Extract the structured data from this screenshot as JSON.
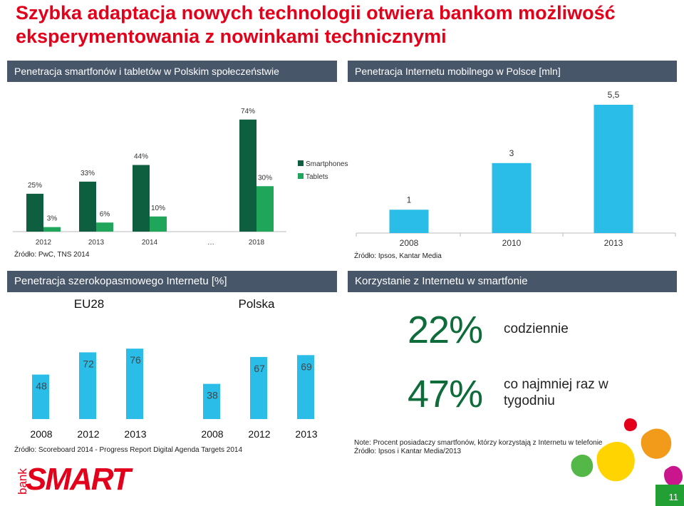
{
  "title": "Szybka adaptacja nowych technologii otwiera bankom możliwość eksperymentowania z nowinkami technicznymi",
  "colors": {
    "red": "#e2001a",
    "dark_green": "#0e5e40",
    "green": "#1fa65a",
    "blue": "#29bde8",
    "header": "#48566a",
    "page_green": "#22a033"
  },
  "panels": {
    "smartphones": {
      "header": "Penetracja smartfonów i tabletów w Polskim społeczeństwie",
      "source": "Źródło: PwC, TNS 2014"
    },
    "mobile_internet": {
      "header": "Penetracja Internetu mobilnego w Polsce [mln]",
      "source": "Źródło: Ipsos, Kantar Media"
    },
    "broadband": {
      "header": "Penetracja szerokopasmowego Internetu [%]",
      "source": "Źródło: Scoreboard 2014 - Progress Report Digital Agenda Targets 2014"
    },
    "usage": {
      "header": "Korzystanie z Internetu w smartfonie",
      "items": [
        {
          "value": "22%",
          "label": "codziennie"
        },
        {
          "value": "47%",
          "label": "co najmniej raz w tygodniu"
        }
      ],
      "note_line1": "Note: Procent posiadaczy smartfonów, którzy korzystają z Internetu w telefonie",
      "note_line2": "Źródło: Ipsos i Kantar Media/2013"
    }
  },
  "logo": {
    "bank": "bank",
    "smart": "SMART"
  },
  "page_number": "11",
  "chart_data": [
    {
      "type": "bar",
      "categories": [
        "2012",
        "2013",
        "2014",
        "…",
        "2018"
      ],
      "series": [
        {
          "name": "Smartphones",
          "values": [
            25,
            33,
            44,
            null,
            74
          ],
          "labels": [
            "25%",
            "33%",
            "44%",
            "",
            "74%"
          ]
        },
        {
          "name": "Tablets",
          "values": [
            3,
            6,
            10,
            null,
            30
          ],
          "labels": [
            "3%",
            "6%",
            "10%",
            "",
            "30%"
          ]
        }
      ],
      "legend": "right-middle",
      "ylim": [
        0,
        80
      ]
    },
    {
      "type": "bar",
      "categories": [
        "2008",
        "2010",
        "2013"
      ],
      "values": [
        1,
        3,
        5.5
      ],
      "labels": [
        "1",
        "3",
        "5,5"
      ],
      "ylim": [
        0,
        5.5
      ]
    },
    {
      "type": "bar",
      "groups": [
        {
          "name": "EU28",
          "categories": [
            "2008",
            "2012",
            "2013"
          ],
          "values": [
            48,
            72,
            76
          ]
        },
        {
          "name": "Polska",
          "categories": [
            "2008",
            "2012",
            "2013"
          ],
          "values": [
            38,
            67,
            69
          ]
        }
      ],
      "ylim": [
        0,
        90
      ]
    }
  ]
}
